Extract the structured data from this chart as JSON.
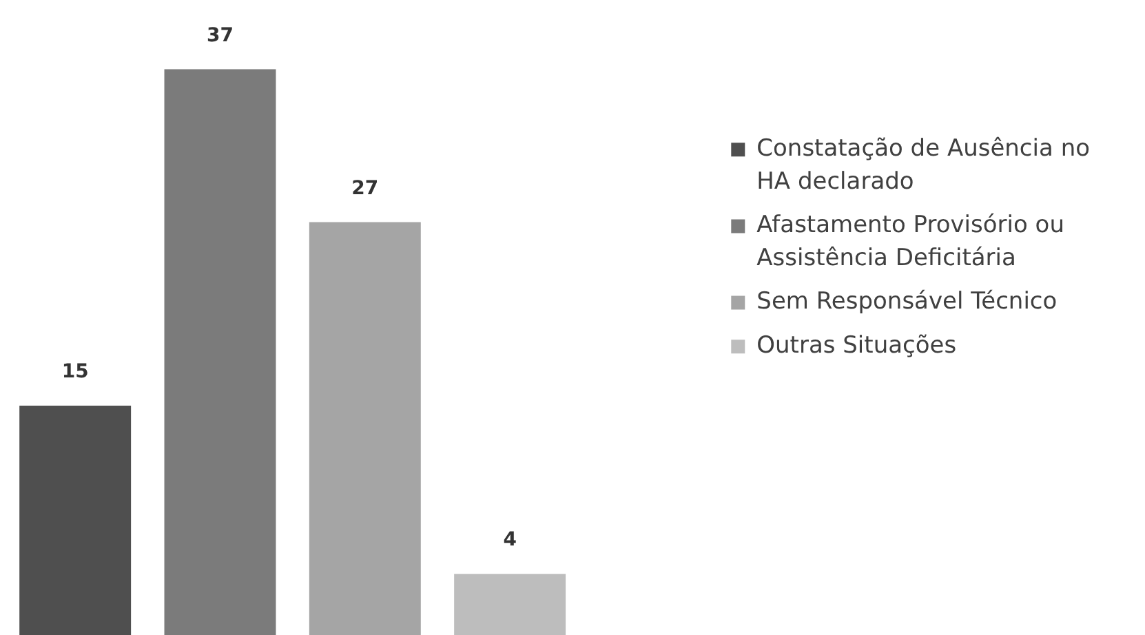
{
  "chart_data": {
    "type": "bar",
    "categories": [
      null
    ],
    "series": [
      {
        "name": "Constatação de Ausência no HA declarado",
        "color": "#4f4f4f",
        "values": [
          15
        ]
      },
      {
        "name": "Afastamento Provisório ou Assistência Deficitária",
        "color": "#7b7b7b",
        "values": [
          37
        ]
      },
      {
        "name": "Sem Responsável Técnico",
        "color": "#a5a5a5",
        "values": [
          27
        ]
      },
      {
        "name": "Outras Situações",
        "color": "#bdbdbd",
        "values": [
          4
        ]
      }
    ],
    "data_labels": true,
    "legend": "right",
    "grid": false
  }
}
